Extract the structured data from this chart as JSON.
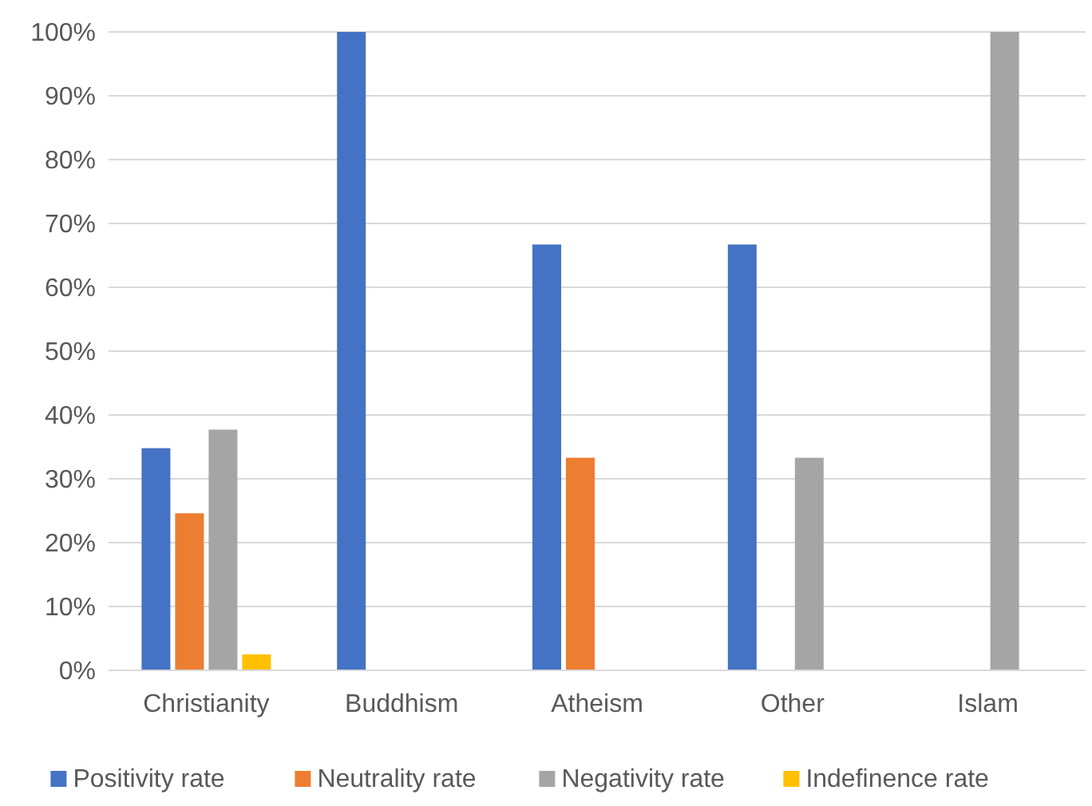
{
  "chart_data": {
    "type": "bar",
    "categories": [
      "Christianity",
      "Buddhism",
      "Atheism",
      "Other",
      "Islam"
    ],
    "series": [
      {
        "name": "Positivity rate",
        "color": "#4472c4",
        "values": [
          34.8,
          100,
          66.7,
          66.7,
          0
        ]
      },
      {
        "name": "Neutrality rate",
        "color": "#ed7d31",
        "values": [
          24.6,
          0,
          33.3,
          0,
          0
        ]
      },
      {
        "name": "Negativity rate",
        "color": "#a5a5a5",
        "values": [
          37.7,
          0,
          0,
          33.3,
          100
        ]
      },
      {
        "name": "Indefinence rate",
        "color": "#ffc000",
        "values": [
          2.5,
          0,
          0,
          0,
          0
        ]
      }
    ],
    "ylim": [
      0,
      100
    ],
    "yticks": [
      {
        "value": 0,
        "label": "0%"
      },
      {
        "value": 10,
        "label": "10%"
      },
      {
        "value": 20,
        "label": "20%"
      },
      {
        "value": 30,
        "label": "30%"
      },
      {
        "value": 40,
        "label": "40%"
      },
      {
        "value": 50,
        "label": "50%"
      },
      {
        "value": 60,
        "label": "60%"
      },
      {
        "value": 70,
        "label": "70%"
      },
      {
        "value": 80,
        "label": "80%"
      },
      {
        "value": 90,
        "label": "90%"
      },
      {
        "value": 100,
        "label": "100%"
      }
    ],
    "grid": "y",
    "legend": "bottom"
  }
}
